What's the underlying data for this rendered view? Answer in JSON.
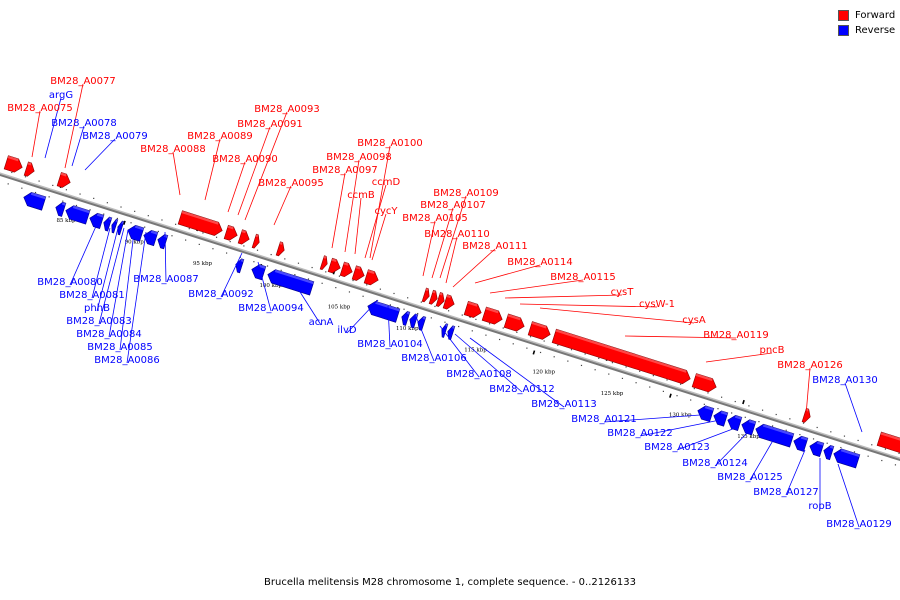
{
  "title": "Brucella melitensis M28 chromosome 1, complete sequence. - 0..2126133",
  "colors": {
    "forward": "#ff0000",
    "reverse": "#0000ff",
    "forward_dark": "#8b0000",
    "reverse_dark": "#00008b"
  },
  "legend": [
    {
      "label": "Forward",
      "color": "#ff0000"
    },
    {
      "label": "Reverse",
      "color": "#0000ff"
    }
  ],
  "ticks": [
    {
      "pos_kbp": 85,
      "label": "85 kbp"
    },
    {
      "pos_kbp": 90,
      "label": "90 kbp"
    },
    {
      "pos_kbp": 95,
      "label": "95 kbp"
    },
    {
      "pos_kbp": 100,
      "label": "100 kbp"
    },
    {
      "pos_kbp": 105,
      "label": "105 kbp"
    },
    {
      "pos_kbp": 110,
      "label": "110 kbp"
    },
    {
      "pos_kbp": 115,
      "label": "115 kbp"
    },
    {
      "pos_kbp": 120,
      "label": "120 kbp"
    },
    {
      "pos_kbp": 125,
      "label": "125 kbp"
    },
    {
      "pos_kbp": 130,
      "label": "130 kbp"
    },
    {
      "pos_kbp": 135,
      "label": "135 kbp"
    }
  ],
  "forward_labels": [
    "BM28_A0077",
    "BM28_A0075",
    "BM28_A0093",
    "BM28_A0091",
    "BM28_A0089",
    "BM28_A0088",
    "BM28_A0090",
    "BM28_A0095",
    "BM28_A0100",
    "BM28_A0098",
    "BM28_A0097",
    "ccmD",
    "ccmB",
    "cycY",
    "BM28_A0109",
    "BM28_A0107",
    "BM28_A0105",
    "BM28_A0110",
    "BM28_A0111",
    "BM28_A0114",
    "BM28_A0115",
    "cysT",
    "cysW-1",
    "cysA",
    "BM28_A0119",
    "pncB",
    "BM28_A0126"
  ],
  "reverse_labels": [
    "argG",
    "BM28_A0078",
    "BM28_A0079",
    "BM28_A0080",
    "BM28_A0081",
    "phhB",
    "BM28_A0083",
    "BM28_A0084",
    "BM28_A0085",
    "BM28_A0086",
    "BM28_A0087",
    "BM28_A0092",
    "BM28_A0094",
    "acnA",
    "ilvD",
    "BM28_A0104",
    "BM28_A0106",
    "BM28_A0108",
    "BM28_A0112",
    "BM28_A0113",
    "BM28_A0121",
    "BM28_A0122",
    "BM28_A0123",
    "BM28_A0124",
    "BM28_A0125",
    "BM28_A0127",
    "ropB",
    "BM28_A0129",
    "BM28_A0130"
  ]
}
